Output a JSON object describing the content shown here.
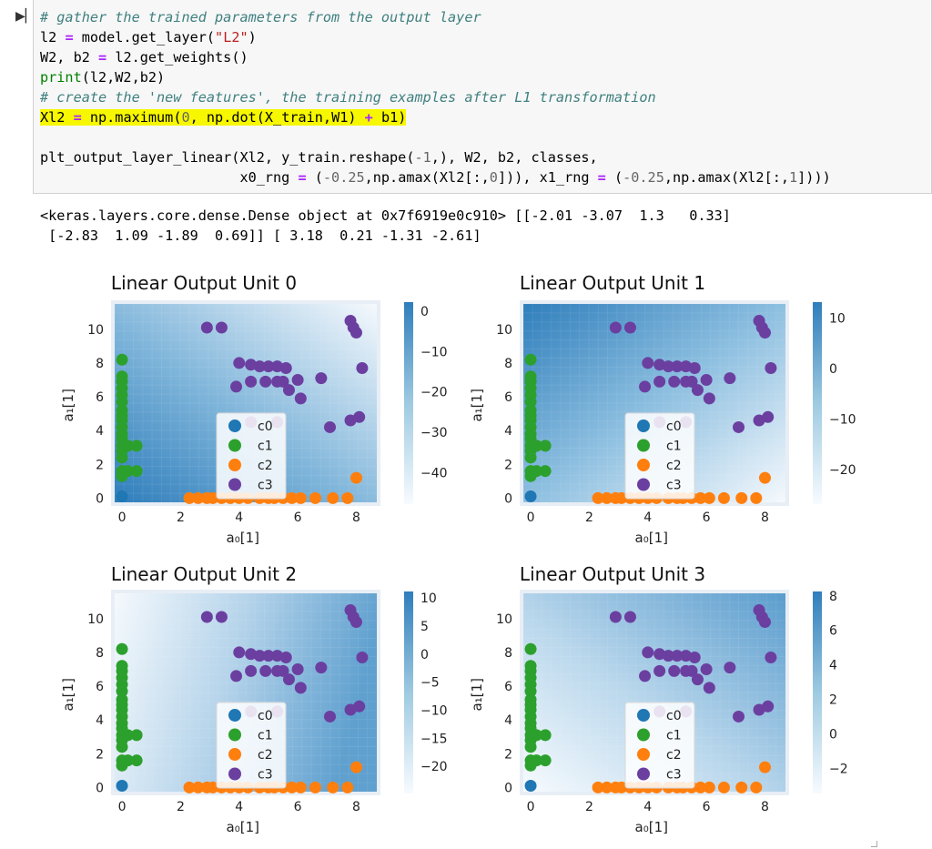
{
  "cell": {
    "run_icon": "run-cell-icon",
    "code_lines": [
      {
        "parts": [
          {
            "t": "# gather the trained parameters from the output layer",
            "k": "c"
          }
        ]
      },
      {
        "parts": [
          {
            "t": "l2 "
          },
          {
            "t": "=",
            "k": "o"
          },
          {
            "t": " model.get_layer("
          },
          {
            "t": "\"L2\"",
            "k": "s"
          },
          {
            "t": ")"
          }
        ]
      },
      {
        "parts": [
          {
            "t": "W2, b2 "
          },
          {
            "t": "=",
            "k": "o"
          },
          {
            "t": " l2.get_weights()"
          }
        ]
      },
      {
        "parts": [
          {
            "t": "print",
            "k": "b"
          },
          {
            "t": "(l2,W2,b2)"
          }
        ]
      },
      {
        "parts": [
          {
            "t": "# create the 'new features', the training examples after L1 transformation",
            "k": "c"
          }
        ]
      },
      {
        "parts": [
          {
            "t": "Xl2 "
          },
          {
            "t": "=",
            "k": "o"
          },
          {
            "t": " np.maximum("
          },
          {
            "t": "0",
            "k": "num"
          },
          {
            "t": ", np.dot(X_train,W1) "
          },
          {
            "t": "+",
            "k": "o"
          },
          {
            "t": " b1)"
          }
        ],
        "highlight": true
      },
      {
        "parts": [
          {
            "t": ""
          }
        ]
      },
      {
        "parts": [
          {
            "t": "plt_output_layer_linear(Xl2, y_train.reshape("
          },
          {
            "t": "-1",
            "k": "num"
          },
          {
            "t": ",), W2, b2, classes,"
          }
        ]
      },
      {
        "parts": [
          {
            "t": "                        x0_rng "
          },
          {
            "t": "=",
            "k": "o"
          },
          {
            "t": " ("
          },
          {
            "t": "-0.25",
            "k": "num"
          },
          {
            "t": ",np.amax(Xl2[:,"
          },
          {
            "t": "0",
            "k": "num"
          },
          {
            "t": "])), x1_rng "
          },
          {
            "t": "=",
            "k": "o"
          },
          {
            "t": " ("
          },
          {
            "t": "-0.25",
            "k": "num"
          },
          {
            "t": ",np.amax(Xl2[:,"
          },
          {
            "t": "1",
            "k": "num"
          },
          {
            "t": "])))"
          }
        ]
      }
    ]
  },
  "output": {
    "lines": [
      "<keras.layers.core.dense.Dense object at 0x7f6919e0c910> [[-2.01 -3.07  1.3   0.33]",
      " [-2.83  1.09 -1.89  0.69]] [ 3.18  0.21 -1.31 -2.61]"
    ]
  },
  "colors": {
    "c0": "#1f77b4",
    "c1": "#2ca02c",
    "c2": "#ff7f0e",
    "c3": "#6b3fa0"
  },
  "chart_data": [
    {
      "type": "scatter",
      "title": "Linear Output Unit 0",
      "xlabel": "a₀[1]",
      "ylabel": "a₁[1]",
      "xlim": [
        -0.25,
        8.7
      ],
      "ylim": [
        -0.25,
        11.5
      ],
      "xticks": [
        "0",
        "2",
        "4",
        "6",
        "8"
      ],
      "yticks": [
        "0",
        "2",
        "4",
        "6",
        "8",
        "10"
      ],
      "legend": [
        "c0",
        "c1",
        "c2",
        "c3"
      ],
      "legend_placement": "lower-center",
      "colorbar": {
        "ticks": [
          "0",
          "−10",
          "−20",
          "−30",
          "−40"
        ],
        "values": [
          0,
          -10,
          -20,
          -30,
          -40
        ],
        "range": [
          -48,
          2
        ]
      },
      "gradient": "dark-lower-left"
    },
    {
      "type": "scatter",
      "title": "Linear Output Unit 1",
      "xlabel": "a₀[1]",
      "ylabel": "a₁[1]",
      "xlim": [
        -0.25,
        8.7
      ],
      "ylim": [
        -0.25,
        11.5
      ],
      "xticks": [
        "0",
        "2",
        "4",
        "6",
        "8"
      ],
      "yticks": [
        "0",
        "2",
        "4",
        "6",
        "8",
        "10"
      ],
      "legend": [
        "c0",
        "c1",
        "c2",
        "c3"
      ],
      "legend_placement": "lower-center",
      "colorbar": {
        "ticks": [
          "10",
          "0",
          "−10",
          "−20"
        ],
        "values": [
          10,
          0,
          -10,
          -20
        ],
        "range": [
          -27,
          13
        ]
      },
      "gradient": "dark-upper-left"
    },
    {
      "type": "scatter",
      "title": "Linear Output Unit 2",
      "xlabel": "a₀[1]",
      "ylabel": "a₁[1]",
      "xlim": [
        -0.25,
        8.7
      ],
      "ylim": [
        -0.25,
        11.5
      ],
      "xticks": [
        "0",
        "2",
        "4",
        "6",
        "8"
      ],
      "yticks": [
        "0",
        "2",
        "4",
        "6",
        "8",
        "10"
      ],
      "legend": [
        "c0",
        "c1",
        "c2",
        "c3"
      ],
      "legend_placement": "lower-center",
      "colorbar": {
        "ticks": [
          "10",
          "5",
          "0",
          "−5",
          "−10",
          "−15",
          "−20"
        ],
        "values": [
          10,
          5,
          0,
          -5,
          -10,
          -15,
          -20
        ],
        "range": [
          -25,
          11
        ]
      },
      "gradient": "dark-right"
    },
    {
      "type": "scatter",
      "title": "Linear Output Unit 3",
      "xlabel": "a₀[1]",
      "ylabel": "a₁[1]",
      "xlim": [
        -0.25,
        8.7
      ],
      "ylim": [
        -0.25,
        11.5
      ],
      "xticks": [
        "0",
        "2",
        "4",
        "6",
        "8"
      ],
      "yticks": [
        "0",
        "2",
        "4",
        "6",
        "8",
        "10"
      ],
      "legend": [
        "c0",
        "c1",
        "c2",
        "c3"
      ],
      "legend_placement": "lower-center",
      "colorbar": {
        "ticks": [
          "8",
          "6",
          "4",
          "2",
          "0",
          "−2"
        ],
        "values": [
          8,
          6,
          4,
          2,
          0,
          -2
        ],
        "range": [
          -3.5,
          8.2
        ]
      },
      "gradient": "dark-upper-right"
    }
  ],
  "scatter_points": {
    "c0": [
      [
        0,
        0.1
      ]
    ],
    "c1": [
      [
        0,
        8.2
      ],
      [
        0,
        7.2
      ],
      [
        0,
        6.9
      ],
      [
        0,
        6.5
      ],
      [
        0,
        6.1
      ],
      [
        0,
        5.7
      ],
      [
        0,
        5.2
      ],
      [
        0,
        4.9
      ],
      [
        0,
        4.6
      ],
      [
        0,
        4.2
      ],
      [
        0,
        3.8
      ],
      [
        0,
        3.5
      ],
      [
        0,
        3.1
      ],
      [
        0,
        2.8
      ],
      [
        0.2,
        3.1
      ],
      [
        0.5,
        3.1
      ],
      [
        0,
        2.4
      ],
      [
        0,
        1.6
      ],
      [
        0.2,
        1.6
      ],
      [
        0.5,
        1.6
      ],
      [
        0,
        1.3
      ]
    ],
    "c2": [
      [
        2.3,
        0
      ],
      [
        2.6,
        0
      ],
      [
        2.9,
        0
      ],
      [
        3.1,
        0
      ],
      [
        3.4,
        0
      ],
      [
        3.7,
        0
      ],
      [
        4.0,
        0
      ],
      [
        4.3,
        0
      ],
      [
        4.7,
        0
      ],
      [
        5.0,
        0
      ],
      [
        5.2,
        0
      ],
      [
        5.5,
        0
      ],
      [
        5.8,
        0
      ],
      [
        6.1,
        0
      ],
      [
        6.6,
        0
      ],
      [
        7.2,
        0
      ],
      [
        7.7,
        0
      ],
      [
        8.0,
        1.2
      ]
    ],
    "c3": [
      [
        2.9,
        10.1
      ],
      [
        3.4,
        10.1
      ],
      [
        4.0,
        8.0
      ],
      [
        4.4,
        7.9
      ],
      [
        4.7,
        7.8
      ],
      [
        5.0,
        7.8
      ],
      [
        5.3,
        7.8
      ],
      [
        5.6,
        7.7
      ],
      [
        4.4,
        6.9
      ],
      [
        4.9,
        6.9
      ],
      [
        5.3,
        6.9
      ],
      [
        6.0,
        7.0
      ],
      [
        6.8,
        7.1
      ],
      [
        8.2,
        7.7
      ],
      [
        3.9,
        6.6
      ],
      [
        5.7,
        6.4
      ],
      [
        6.1,
        5.9
      ],
      [
        5.3,
        4.5
      ],
      [
        7.1,
        4.2
      ],
      [
        7.8,
        4.6
      ],
      [
        8.1,
        4.8
      ],
      [
        7.8,
        10.5
      ],
      [
        7.9,
        10.1
      ],
      [
        8.0,
        9.8
      ],
      [
        4.4,
        4.5
      ],
      [
        5.5,
        6.9
      ]
    ]
  }
}
